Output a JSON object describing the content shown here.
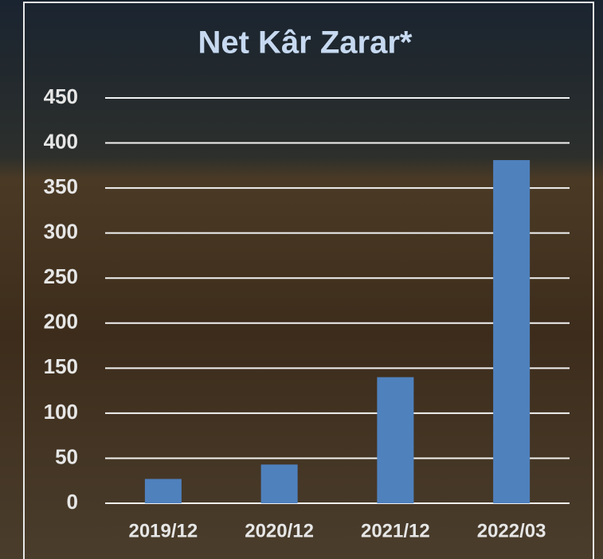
{
  "chart_data": {
    "type": "bar",
    "title": "Net Kâr Zarar*",
    "categories": [
      "2019/12",
      "2020/12",
      "2021/12",
      "2022/03"
    ],
    "values": [
      27,
      43,
      140,
      381
    ],
    "color": "#4f81bd",
    "ylim": [
      0,
      450
    ],
    "yticks": [
      0,
      50,
      100,
      150,
      200,
      250,
      300,
      350,
      400,
      450
    ],
    "grid": true
  }
}
